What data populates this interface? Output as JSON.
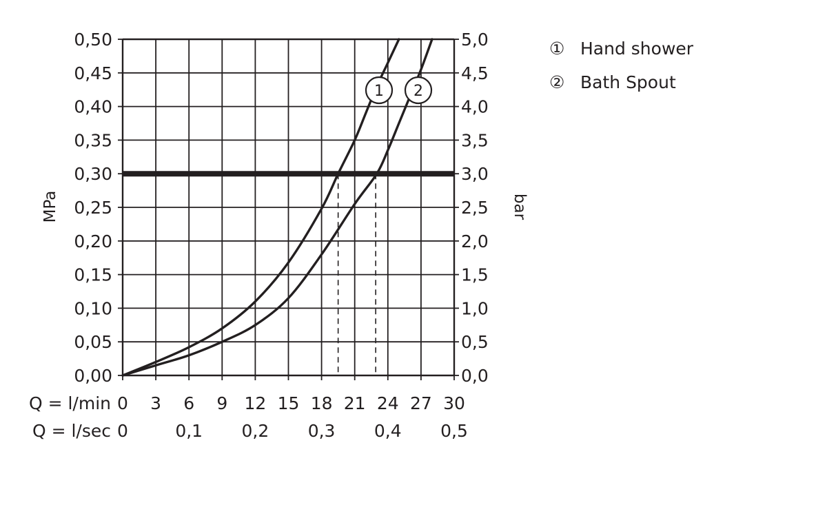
{
  "chart_data": {
    "type": "line",
    "y_left": {
      "label": "MPa",
      "ticks": [
        "0,00",
        "0,05",
        "0,10",
        "0,15",
        "0,20",
        "0,25",
        "0,30",
        "0,35",
        "0,40",
        "0,45",
        "0,50"
      ],
      "range": [
        0,
        0.5
      ]
    },
    "y_right": {
      "label": "bar",
      "ticks": [
        "0,0",
        "0,5",
        "1,0",
        "1,5",
        "2,0",
        "2,5",
        "3,0",
        "3,5",
        "4,0",
        "4,5",
        "5,0"
      ],
      "range": [
        0,
        5
      ]
    },
    "x_lpm": {
      "label": "Q = l/min",
      "ticks": [
        "0",
        "3",
        "6",
        "9",
        "12",
        "15",
        "18",
        "21",
        "24",
        "27",
        "30"
      ],
      "range": [
        0,
        30
      ]
    },
    "x_lps": {
      "label": "Q = l/sec",
      "ticks": [
        {
          "value": 0,
          "label": "0"
        },
        {
          "value": 0.1,
          "label": "0,1"
        },
        {
          "value": 0.2,
          "label": "0,2"
        },
        {
          "value": 0.3,
          "label": "0,3"
        },
        {
          "value": 0.4,
          "label": "0,4"
        },
        {
          "value": 0.5,
          "label": "0,5"
        }
      ]
    },
    "grid": true,
    "reference_line": {
      "mpa": 0.3
    },
    "series": [
      {
        "marker": "1",
        "name": "Hand shower",
        "x": [
          0,
          3,
          6,
          9,
          12,
          15,
          18,
          19.5,
          21,
          22,
          23,
          24,
          25
        ],
        "y": [
          0,
          0.02,
          0.042,
          0.07,
          0.11,
          0.168,
          0.248,
          0.3,
          0.35,
          0.39,
          0.43,
          0.465,
          0.5
        ],
        "drop_at_x": 19.5
      },
      {
        "marker": "2",
        "name": "Bath Spout",
        "x": [
          0,
          3,
          6,
          9,
          12,
          15,
          18,
          21,
          23,
          24,
          25,
          26,
          27,
          28
        ],
        "y": [
          0,
          0.015,
          0.03,
          0.05,
          0.075,
          0.115,
          0.18,
          0.255,
          0.3,
          0.335,
          0.375,
          0.415,
          0.455,
          0.5
        ],
        "drop_at_x": 22.9
      }
    ],
    "legend": {
      "placement": "top-right",
      "items": [
        {
          "marker": "①",
          "label": "Hand shower"
        },
        {
          "marker": "②",
          "label": "Bath Spout"
        }
      ]
    }
  }
}
